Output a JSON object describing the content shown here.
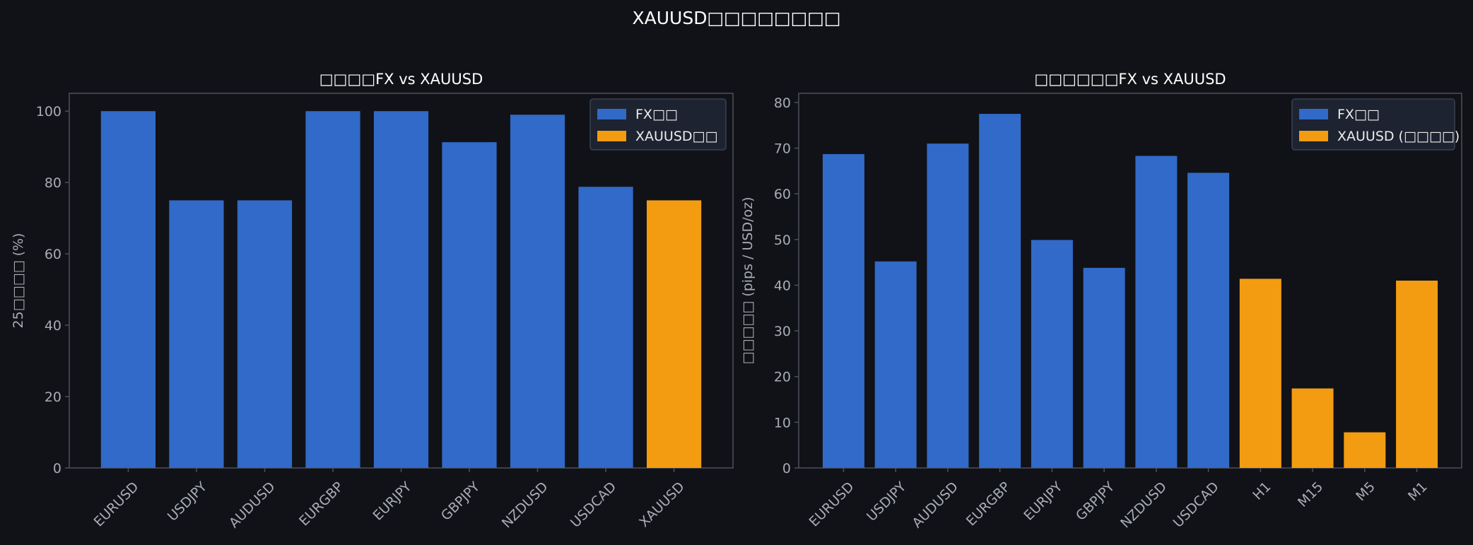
{
  "figure_title": "XAUUSD□□□□□□□□",
  "colors": {
    "background": "#111217",
    "fx_bar": "#316ac8",
    "xau_bar": "#f39c12",
    "axis": "#4a4f5c",
    "tick_text": "#a8acb4",
    "title_text": "#ffffff",
    "legend_bg": "#1d2330",
    "legend_border": "#3a4150"
  },
  "chart_data": [
    {
      "type": "bar",
      "title": "□□□□FX vs XAUUSD",
      "xlabel": "",
      "ylabel": "25□□□□ (%)",
      "ylim": [
        0,
        105
      ],
      "yticks": [
        0,
        20,
        40,
        60,
        80,
        100
      ],
      "grid": false,
      "legend_position": "top-right",
      "categories": [
        "EURUSD",
        "USDJPY",
        "AUDUSD",
        "EURGBP",
        "EURJPY",
        "GBPJPY",
        "NZDUSD",
        "USDCAD",
        "XAUUSD"
      ],
      "values": [
        100,
        75,
        75,
        100,
        100,
        91.3,
        99,
        78.8,
        75
      ],
      "bar_series": [
        "fx",
        "fx",
        "fx",
        "fx",
        "fx",
        "fx",
        "fx",
        "fx",
        "xau"
      ],
      "series": [
        {
          "key": "fx",
          "name": "FX□□",
          "color": "#316ac8"
        },
        {
          "key": "xau",
          "name": "XAUUSD□□",
          "color": "#f39c12"
        }
      ]
    },
    {
      "type": "bar",
      "title": "□□□□□□FX vs XAUUSD",
      "xlabel": "",
      "ylabel": "□□□□□ (pips / USD/oz)",
      "ylim": [
        0,
        82
      ],
      "yticks": [
        0,
        10,
        20,
        30,
        40,
        50,
        60,
        70,
        80
      ],
      "grid": false,
      "legend_position": "top-right",
      "categories": [
        "EURUSD",
        "USDJPY",
        "AUDUSD",
        "EURGBP",
        "EURJPY",
        "GBPJPY",
        "NZDUSD",
        "USDCAD",
        "H1",
        "M15",
        "M5",
        "M1"
      ],
      "values": [
        68.7,
        45.2,
        71.0,
        77.5,
        49.9,
        43.8,
        68.3,
        64.6,
        41.4,
        17.4,
        7.8,
        41.0
      ],
      "bar_series": [
        "fx",
        "fx",
        "fx",
        "fx",
        "fx",
        "fx",
        "fx",
        "fx",
        "xau",
        "xau",
        "xau",
        "xau"
      ],
      "series": [
        {
          "key": "fx",
          "name": "FX□□",
          "color": "#316ac8"
        },
        {
          "key": "xau",
          "name": "XAUUSD (□□□□)",
          "color": "#f39c12"
        }
      ]
    }
  ]
}
